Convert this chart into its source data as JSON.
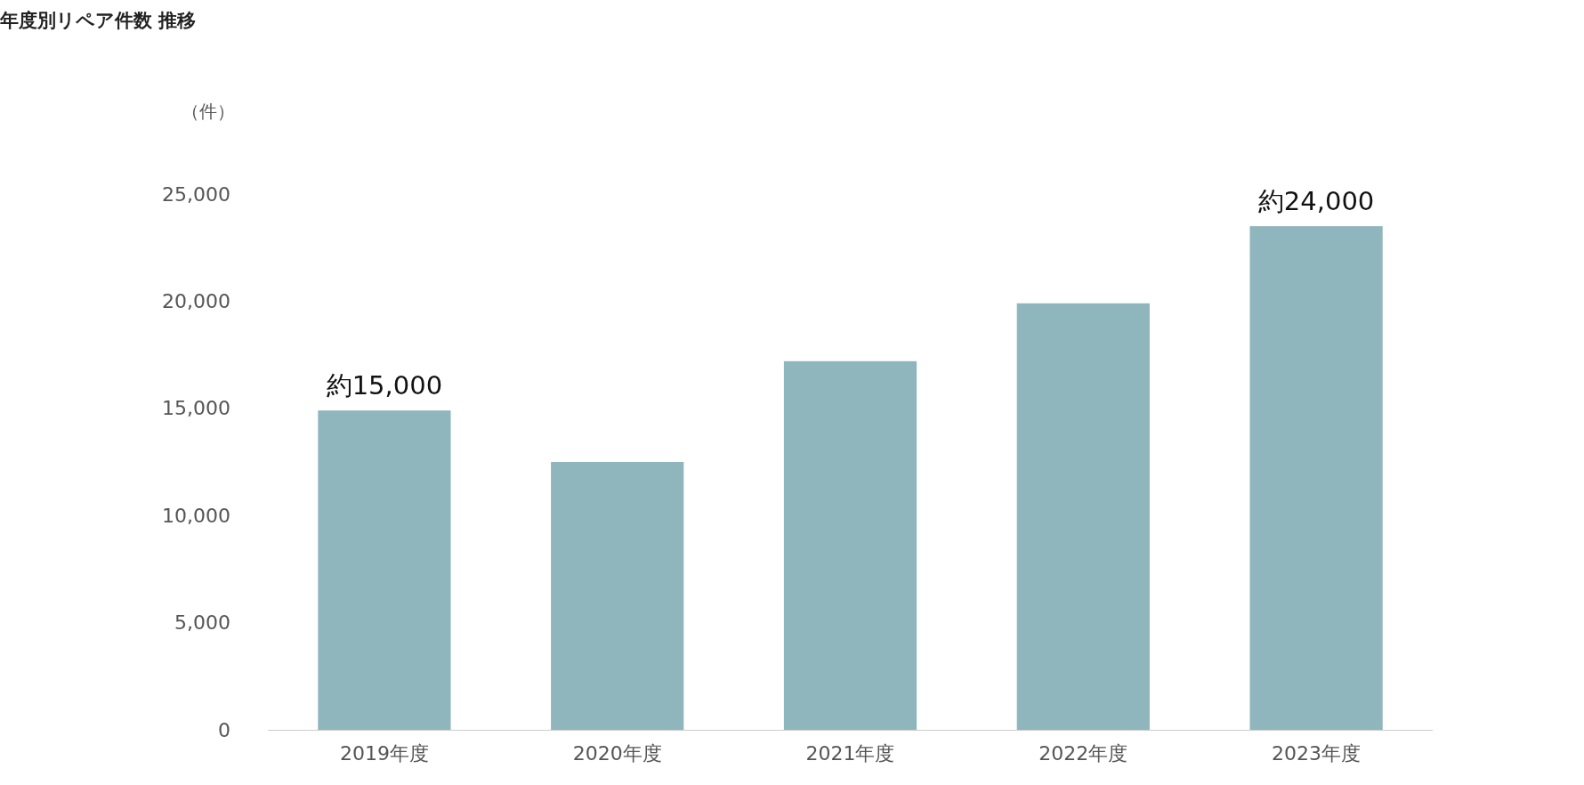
{
  "chart_data": {
    "type": "bar",
    "title": "年度別リペア件数 推移",
    "ylabel": "（件）",
    "categories": [
      "2019年度",
      "2020年度",
      "2021年度",
      "2022年度",
      "2023年度"
    ],
    "values": [
      14900,
      12500,
      17200,
      19900,
      23500
    ],
    "value_labels": [
      "約15,000",
      null,
      null,
      null,
      "約24,000"
    ],
    "color": "#8fb6bd",
    "ylim": [
      0,
      25000
    ],
    "yticks": [
      {
        "value": 0,
        "label": "0"
      },
      {
        "value": 5000,
        "label": "5,000"
      },
      {
        "value": 10000,
        "label": "10,000"
      },
      {
        "value": 15000,
        "label": "15,000"
      },
      {
        "value": 20000,
        "label": "20,000"
      },
      {
        "value": 25000,
        "label": "25,000"
      }
    ],
    "grid": false
  }
}
